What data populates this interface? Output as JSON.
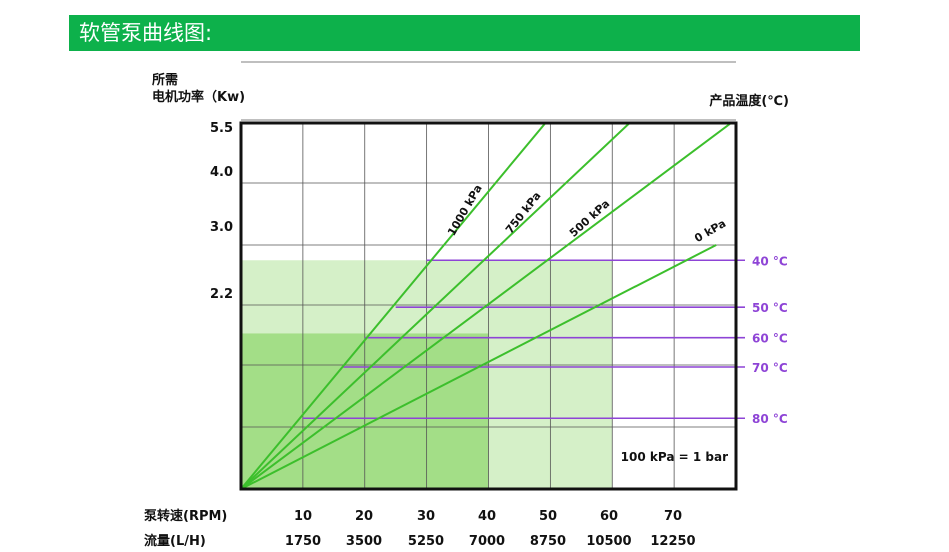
{
  "header": {
    "title": "软管泵曲线图:"
  },
  "chart_data": {
    "type": "line",
    "ylabel_lines": [
      "所需",
      "电机功率（Kw)"
    ],
    "right_label": "产品温度(℃)",
    "y_ticks": [
      "5.5",
      "4.0",
      "3.0",
      "2.2"
    ],
    "x_row_labels": [
      "泵转速(RPM)",
      "流量(L/H)"
    ],
    "rpm_ticks": [
      "10",
      "20",
      "30",
      "40",
      "50",
      "60",
      "70"
    ],
    "flow_ticks": [
      "1750",
      "3500",
      "5250",
      "7000",
      "8750",
      "10500",
      "12250"
    ],
    "xlim": [
      0,
      80
    ],
    "ylim": [
      0,
      6
    ],
    "series": [
      {
        "name": "1000 kPa",
        "x": [
          0,
          49.2
        ],
        "y": [
          0,
          6
        ]
      },
      {
        "name": "750 kPa",
        "x": [
          0,
          62.8
        ],
        "y": [
          0,
          6
        ]
      },
      {
        "name": "500 kPa",
        "x": [
          0,
          79.2
        ],
        "y": [
          0,
          6
        ]
      },
      {
        "name": "0 kPa",
        "x": [
          0,
          76.8
        ],
        "y": [
          0,
          4.0
        ]
      }
    ],
    "temperatures": [
      {
        "label": "40 °C",
        "level": 3.75
      },
      {
        "label": "50 °C",
        "level": 2.98
      },
      {
        "label": "60 °C",
        "level": 2.48
      },
      {
        "label": "70 °C",
        "level": 2.0
      },
      {
        "label": "80 °C",
        "level": 1.16
      }
    ],
    "note": "100 kPa = 1 bar",
    "colors": {
      "line": "#3cbf2c",
      "temp_line": "#8e44d6",
      "zone_light": "#d5f0c8",
      "zone_dark": "#a3de87",
      "grid": "#555555",
      "header": "#0db14b"
    }
  }
}
